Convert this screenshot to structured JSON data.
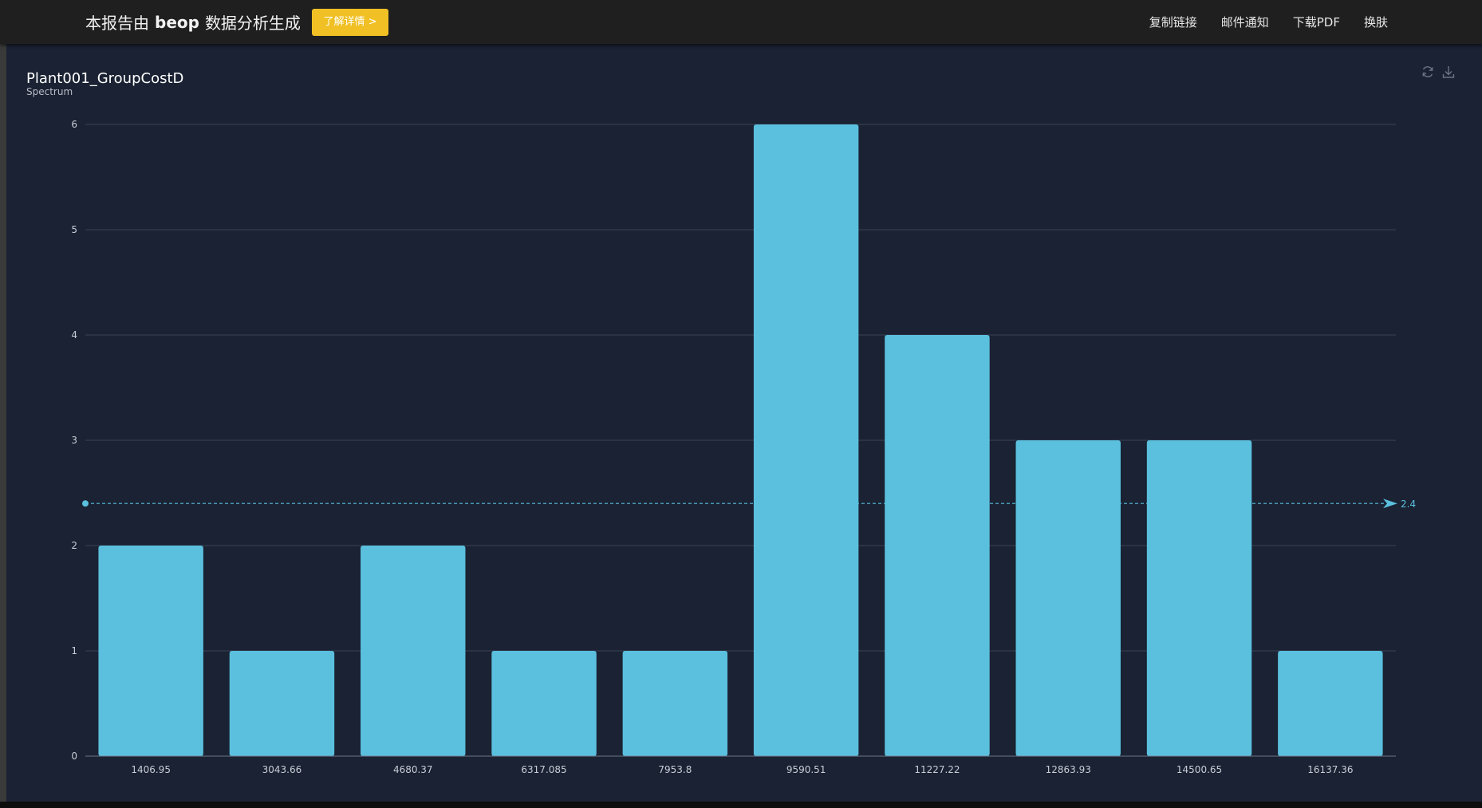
{
  "header": {
    "brand_prefix": "本报告由",
    "brand_name": "beop",
    "brand_suffix": "数据分析生成",
    "learn_more": "了解详情 >",
    "nav": [
      "复制链接",
      "邮件通知",
      "下载PDF",
      "换肤"
    ]
  },
  "toolbar": {
    "icons": [
      "refresh-icon",
      "download-icon"
    ]
  },
  "colors": {
    "bar": "#5bc0de",
    "grid": "#3a4457",
    "mean_line": "#5bc0de",
    "panel_bg": "#1a2233",
    "accent_button": "#f0c024"
  },
  "chart_data": {
    "type": "bar",
    "title": "Plant001_GroupCostD",
    "subtitle": "Spectrum",
    "categories": [
      "1406.95",
      "3043.66",
      "4680.37",
      "6317.085",
      "7953.8",
      "9590.51",
      "11227.22",
      "12863.93",
      "14500.65",
      "16137.36"
    ],
    "values": [
      2,
      1,
      2,
      1,
      1,
      6,
      4,
      3,
      3,
      1
    ],
    "ylim": [
      0,
      6
    ],
    "yticks": [
      0,
      1,
      2,
      3,
      4,
      5,
      6
    ],
    "mark_line": {
      "type": "average",
      "value": 2.4,
      "label": "2.4"
    },
    "grid": true,
    "legend": "none"
  }
}
